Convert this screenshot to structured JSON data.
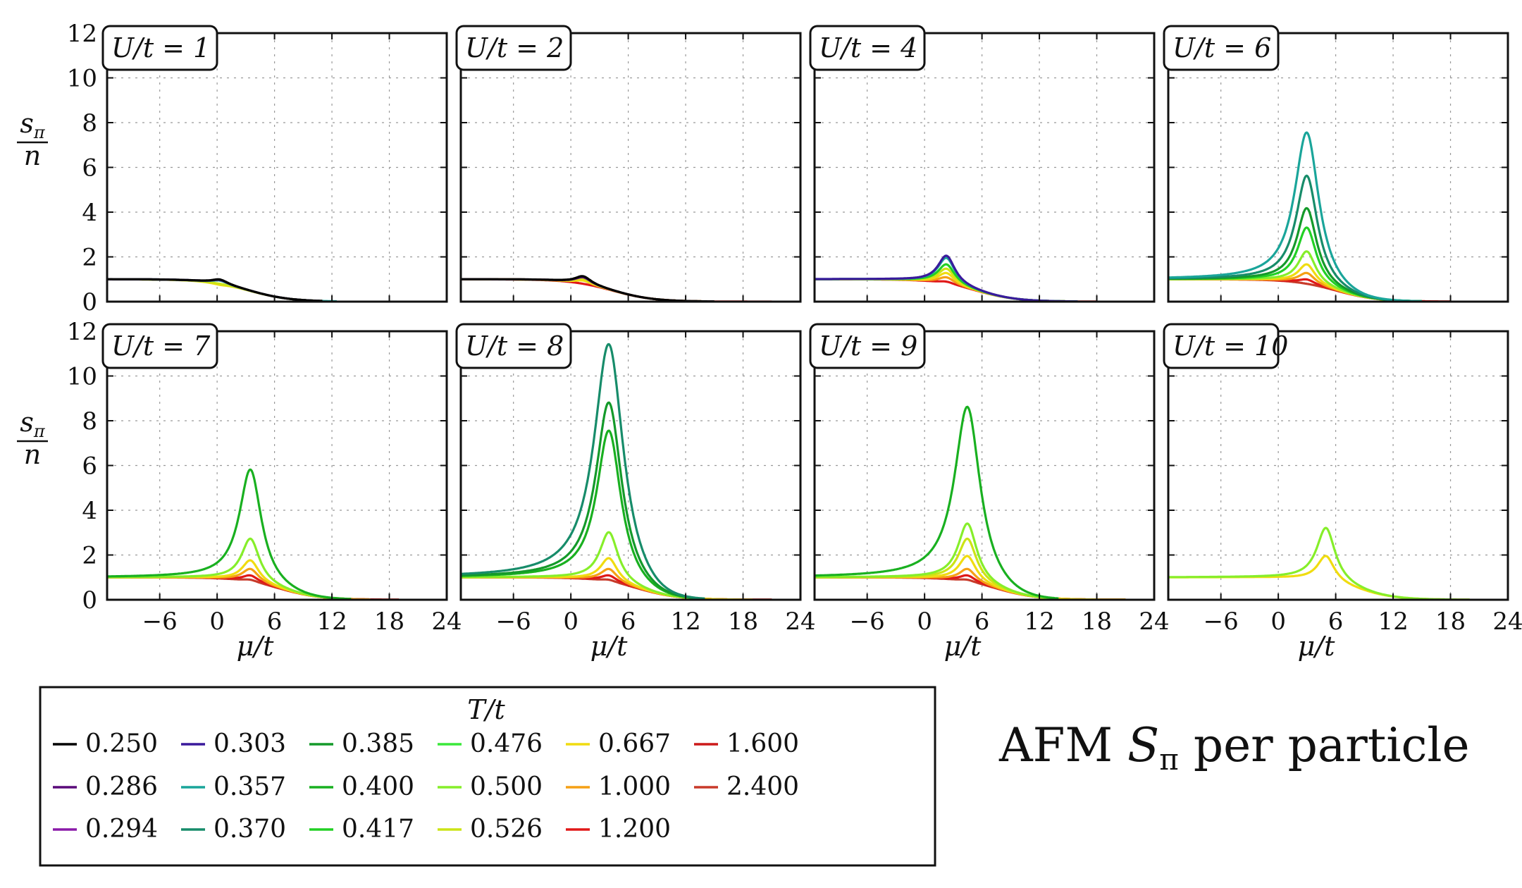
{
  "figure": {
    "title_main": "AFM ",
    "title_symbol": "S",
    "title_sub": "π",
    "title_rest": " per particle",
    "ylabel_num": "s",
    "ylabel_num_sub": "π",
    "ylabel_den": "n",
    "xlabel": "μ/t",
    "legend_title": "T/t"
  },
  "colors": {
    "0.250": "#000000",
    "0.286": "#5a0a7a",
    "0.294": "#8a1aa8",
    "0.303": "#3a1a9c",
    "0.357": "#1aa59a",
    "0.370": "#178c6a",
    "0.385": "#149a2a",
    "0.400": "#19b020",
    "0.417": "#22d025",
    "0.476": "#3ae83a",
    "0.500": "#86ee2a",
    "0.526": "#cce415",
    "0.667": "#f0dc10",
    "1.000": "#f5a015",
    "1.200": "#e01818",
    "1.600": "#cc1a1a",
    "2.400": "#c83a2a"
  },
  "legend": [
    {
      "label": "0.250",
      "color": "#000000"
    },
    {
      "label": "0.286",
      "color": "#5a0a7a"
    },
    {
      "label": "0.294",
      "color": "#8a1aa8"
    },
    {
      "label": "0.303",
      "color": "#3a1a9c"
    },
    {
      "label": "0.357",
      "color": "#1aa59a"
    },
    {
      "label": "0.370",
      "color": "#178c6a"
    },
    {
      "label": "0.385",
      "color": "#149a2a"
    },
    {
      "label": "0.400",
      "color": "#19b020"
    },
    {
      "label": "0.417",
      "color": "#22d025"
    },
    {
      "label": "0.476",
      "color": "#3ae83a"
    },
    {
      "label": "0.500",
      "color": "#86ee2a"
    },
    {
      "label": "0.526",
      "color": "#cce415"
    },
    {
      "label": "0.667",
      "color": "#f0dc10"
    },
    {
      "label": "1.000",
      "color": "#f5a015"
    },
    {
      "label": "1.200",
      "color": "#e01818"
    },
    {
      "label": "1.600",
      "color": "#cc1a1a"
    },
    {
      "label": "2.400",
      "color": "#c83a2a"
    }
  ],
  "chart_data": {
    "type": "line",
    "xlabel": "μ/t",
    "ylabel": "sπ/n",
    "xlim": [
      -11.5,
      24
    ],
    "ylim": [
      0,
      12
    ],
    "xticks": [
      -6,
      0,
      6,
      12,
      18,
      24
    ],
    "yticks": [
      0,
      2,
      4,
      6,
      8,
      10,
      12
    ],
    "grid": true,
    "legend_position": "below",
    "curve_model": "baseline 1 for mu << 0, peak near the listed center, decaying to ~0 at large mu",
    "panels": [
      {
        "label": "U/t = 1",
        "x_start": -11.5,
        "series": [
          {
            "T": "0.250",
            "peak_center": 0.3,
            "peak_height": 1.2,
            "x_end": 11
          },
          {
            "T": "0.286",
            "peak_center": 0.3,
            "peak_height": 1.18,
            "x_end": 11
          },
          {
            "T": "0.357",
            "peak_center": 0.3,
            "peak_height": 1.15,
            "x_end": 12.5
          },
          {
            "T": "0.526",
            "peak_center": 0.3,
            "peak_height": 1.0,
            "x_end": 11
          },
          {
            "T": "0.667",
            "peak_center": 0.3,
            "peak_height": 0.95,
            "x_end": 11
          }
        ]
      },
      {
        "label": "U/t = 2",
        "x_start": -11.5,
        "series": [
          {
            "T": "0.250",
            "peak_center": 1.3,
            "peak_height": 1.35,
            "x_end": 15
          },
          {
            "T": "0.286",
            "peak_center": 1.3,
            "peak_height": 1.3,
            "x_end": 15
          },
          {
            "T": "0.526",
            "peak_center": 1.3,
            "peak_height": 1.25,
            "x_end": 15
          },
          {
            "T": "0.667",
            "peak_center": 1.3,
            "peak_height": 1.15,
            "x_end": 15
          },
          {
            "T": "1.200",
            "peak_center": 1.3,
            "peak_height": 1.0,
            "x_end": 21
          }
        ]
      },
      {
        "label": "U/t = 4",
        "x_start": -11.5,
        "series": [
          {
            "T": "0.303",
            "peak_center": 2.3,
            "peak_height": 2.3,
            "x_end": 16
          },
          {
            "T": "0.357",
            "peak_center": 2.3,
            "peak_height": 2.2,
            "x_end": 16
          },
          {
            "T": "0.417",
            "peak_center": 2.3,
            "peak_height": 1.9,
            "x_end": 16
          },
          {
            "T": "0.526",
            "peak_center": 2.3,
            "peak_height": 1.7,
            "x_end": 16
          },
          {
            "T": "0.667",
            "peak_center": 2.3,
            "peak_height": 1.5,
            "x_end": 16
          },
          {
            "T": "1.000",
            "peak_center": 2.3,
            "peak_height": 1.3,
            "x_end": 16
          },
          {
            "T": "1.200",
            "peak_center": 2.3,
            "peak_height": 1.1,
            "x_end": 18
          }
        ]
      },
      {
        "label": "U/t = 6",
        "x_start": -11.5,
        "series": [
          {
            "T": "0.357",
            "peak_center": 3.0,
            "peak_height": 8.0,
            "x_end": 15
          },
          {
            "T": "0.370",
            "peak_center": 3.0,
            "peak_height": 6.0,
            "x_end": 15
          },
          {
            "T": "0.385",
            "peak_center": 3.0,
            "peak_height": 4.5,
            "x_end": 15
          },
          {
            "T": "0.417",
            "peak_center": 3.0,
            "peak_height": 3.6,
            "x_end": 15
          },
          {
            "T": "0.500",
            "peak_center": 3.0,
            "peak_height": 2.5,
            "x_end": 15
          },
          {
            "T": "0.667",
            "peak_center": 3.0,
            "peak_height": 1.9,
            "x_end": 15
          },
          {
            "T": "1.000",
            "peak_center": 3.0,
            "peak_height": 1.5,
            "x_end": 15
          },
          {
            "T": "1.200",
            "peak_center": 3.0,
            "peak_height": 1.2,
            "x_end": 18
          },
          {
            "T": "2.400",
            "peak_center": 3.0,
            "peak_height": 1.0,
            "x_end": 18
          }
        ]
      },
      {
        "label": "U/t = 7",
        "x_start": -11.5,
        "series": [
          {
            "T": "0.400",
            "peak_center": 3.5,
            "peak_height": 6.2,
            "x_end": 14
          },
          {
            "T": "0.500",
            "peak_center": 3.5,
            "peak_height": 3.0,
            "x_end": 14
          },
          {
            "T": "0.667",
            "peak_center": 3.5,
            "peak_height": 2.0,
            "x_end": 14
          },
          {
            "T": "1.000",
            "peak_center": 3.5,
            "peak_height": 1.6,
            "x_end": 16
          },
          {
            "T": "1.200",
            "peak_center": 3.5,
            "peak_height": 1.3,
            "x_end": 19
          },
          {
            "T": "2.400",
            "peak_center": 3.5,
            "peak_height": 1.1,
            "x_end": 19
          }
        ]
      },
      {
        "label": "U/t = 8",
        "x_start": -11.5,
        "series": [
          {
            "T": "0.370",
            "peak_center": 4.0,
            "peak_height": 12.0,
            "x_end": 14
          },
          {
            "T": "0.385",
            "peak_center": 4.0,
            "peak_height": 9.3,
            "x_end": 14
          },
          {
            "T": "0.400",
            "peak_center": 4.0,
            "peak_height": 8.0,
            "x_end": 14
          },
          {
            "T": "0.500",
            "peak_center": 4.0,
            "peak_height": 3.3,
            "x_end": 14
          },
          {
            "T": "0.667",
            "peak_center": 4.0,
            "peak_height": 2.1,
            "x_end": 19
          },
          {
            "T": "1.000",
            "peak_center": 4.0,
            "peak_height": 1.6,
            "x_end": 19
          },
          {
            "T": "1.200",
            "peak_center": 4.0,
            "peak_height": 1.3,
            "x_end": 21
          },
          {
            "T": "2.400",
            "peak_center": 4.0,
            "peak_height": 1.1,
            "x_end": 21
          }
        ]
      },
      {
        "label": "U/t = 9",
        "x_start": -11.5,
        "series": [
          {
            "T": "0.400",
            "peak_center": 4.5,
            "peak_height": 9.1,
            "x_end": 14
          },
          {
            "T": "0.500",
            "peak_center": 4.5,
            "peak_height": 3.7,
            "x_end": 14
          },
          {
            "T": "0.526",
            "peak_center": 4.5,
            "peak_height": 3.0,
            "x_end": 14
          },
          {
            "T": "0.667",
            "peak_center": 4.5,
            "peak_height": 2.2,
            "x_end": 21
          },
          {
            "T": "1.000",
            "peak_center": 4.5,
            "peak_height": 1.6,
            "x_end": 21
          },
          {
            "T": "1.200",
            "peak_center": 4.5,
            "peak_height": 1.3,
            "x_end": 21
          },
          {
            "T": "2.400",
            "peak_center": 4.5,
            "peak_height": 1.1,
            "x_end": 21
          }
        ]
      },
      {
        "label": "U/t = 10",
        "x_start": -11.5,
        "series": [
          {
            "T": "0.500",
            "peak_center": 5.0,
            "peak_height": 3.5,
            "x_end": 20
          },
          {
            "T": "0.667",
            "peak_center": 5.0,
            "peak_height": 2.2,
            "x_end": 20
          }
        ]
      }
    ]
  }
}
